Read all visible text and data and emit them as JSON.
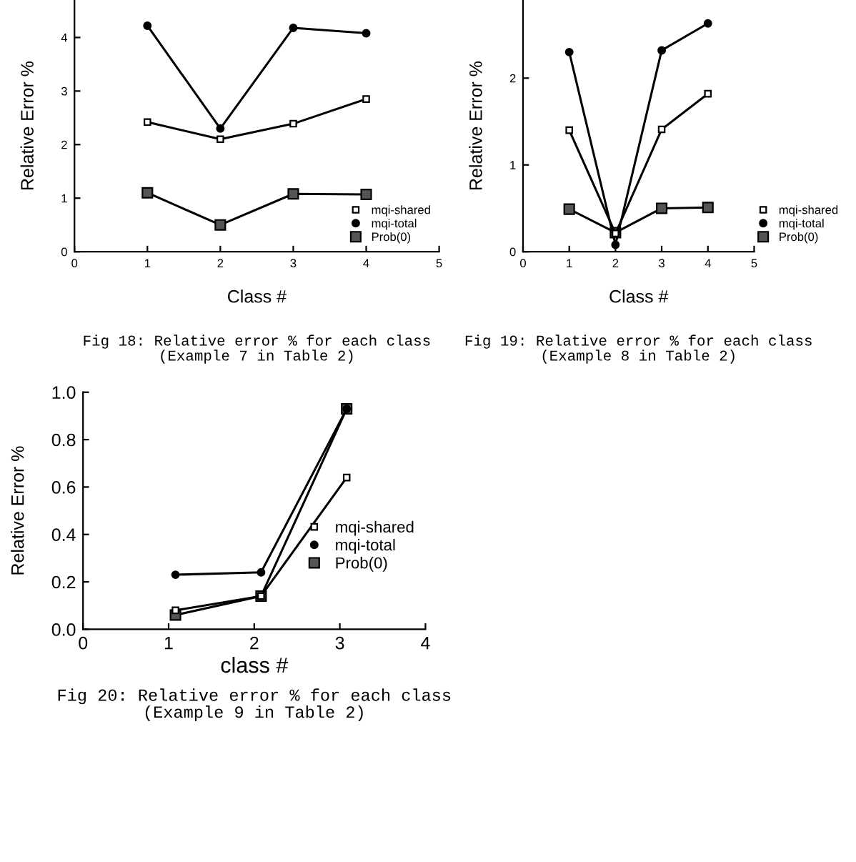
{
  "chart_data": [
    {
      "type": "line",
      "title": "Fig 18: Relative error % for each class",
      "subtitle": "(Example 7 in Table 2)",
      "xlabel": "Class #",
      "ylabel": "Relative Error %",
      "xlim": [
        0,
        5
      ],
      "xticks": [
        0,
        1,
        2,
        3,
        4,
        5
      ],
      "ylim": [
        0,
        4.7
      ],
      "yticks": [
        0,
        1,
        2,
        3,
        4
      ],
      "grid": false,
      "legend": "bottom right",
      "series": [
        {
          "name": "mqi-shared",
          "color": "#000000",
          "marker": "square",
          "x": [
            1,
            2,
            3,
            4
          ],
          "values": [
            2.42,
            2.1,
            2.39,
            2.85
          ]
        },
        {
          "name": "mqi-total",
          "color": "#000000",
          "marker": "circle",
          "x": [
            1,
            2,
            3,
            4
          ],
          "values": [
            4.22,
            2.3,
            4.18,
            4.08
          ]
        },
        {
          "name": "Prob(0)",
          "color": "#000000",
          "marker": "square",
          "x": [
            1,
            2,
            3,
            4
          ],
          "values": [
            1.1,
            0.5,
            1.08,
            1.07
          ]
        }
      ]
    },
    {
      "type": "line",
      "title": "Fig 19: Relative error % for each class",
      "subtitle": "(Example 8 in Table 2)",
      "xlabel": "Class #",
      "ylabel": "Relative Error %",
      "xlim": [
        0,
        5
      ],
      "xticks": [
        0,
        1,
        2,
        3,
        4,
        5
      ],
      "ylim": [
        0,
        2.9
      ],
      "yticks": [
        0,
        1,
        2
      ],
      "grid": false,
      "legend": "bottom right",
      "series": [
        {
          "name": "mqi-shared",
          "color": "#000000",
          "marker": "square",
          "x": [
            1,
            2,
            3,
            4
          ],
          "values": [
            1.4,
            0.21,
            1.41,
            1.82
          ]
        },
        {
          "name": "mqi-total",
          "color": "#000000",
          "marker": "circle",
          "x": [
            1,
            2,
            3,
            4
          ],
          "values": [
            2.3,
            0.08,
            2.32,
            2.63
          ]
        },
        {
          "name": "Prob(0)",
          "color": "#000000",
          "marker": "square",
          "x": [
            1,
            2,
            3,
            4
          ],
          "values": [
            0.49,
            0.22,
            0.5,
            0.51
          ]
        }
      ]
    },
    {
      "type": "line",
      "title": "Fig 20: Relative error % for each class",
      "subtitle": "(Example 9 in Table 2)",
      "xlabel": "class #",
      "ylabel": "Relative Error %",
      "xlim": [
        0,
        4
      ],
      "xticks": [
        0,
        1,
        2,
        3,
        4
      ],
      "ylim": [
        0,
        1.0
      ],
      "yticks": [
        {
          "value": 0,
          "label": "0.0"
        },
        0.2,
        0.4,
        0.6,
        0.8,
        {
          "value": 1.0,
          "label": "1.0"
        }
      ],
      "grid": false,
      "legend": "right",
      "series": [
        {
          "name": "mqi-shared",
          "color": "#000000",
          "marker": "square",
          "x": [
            1.08,
            2.08,
            3.08
          ],
          "values": [
            0.08,
            0.14,
            0.64
          ]
        },
        {
          "name": "mqi-total",
          "color": "#000000",
          "marker": "circle",
          "x": [
            1.08,
            2.08,
            3.08
          ],
          "values": [
            0.23,
            0.24,
            0.93
          ]
        },
        {
          "name": "Prob(0)",
          "color": "#000000",
          "marker": "square",
          "x": [
            1.08,
            2.08,
            3.08
          ],
          "values": [
            0.06,
            0.14,
            0.93
          ]
        }
      ]
    }
  ]
}
